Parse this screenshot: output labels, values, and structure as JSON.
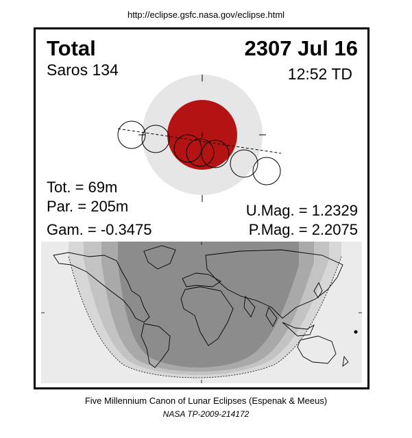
{
  "header": {
    "url": "http://eclipse.gsfc.nasa.gov/eclipse.html"
  },
  "eclipse": {
    "type": "Total",
    "date": "2307 Jul 16",
    "saros": "Saros 134",
    "time": "12:52 TD",
    "tot": "Tot. =  69m",
    "par": "Par. = 205m",
    "gam": "Gam. = -0.3475",
    "umag": "U.Mag. = 1.2329",
    "pmag": "P.Mag. = 2.2075"
  },
  "colors": {
    "umbra": "#b31313",
    "penumbra": "#e6e6e6",
    "map_dark": "#8c8c8c",
    "band_1": "#a9a9a9",
    "band_2": "#c3c3c3",
    "band_3": "#d7d7d7",
    "band_4": "#ebebeb"
  },
  "footer": {
    "line1": "Five Millennium Canon of Lunar Eclipses (Espenak & Meeus)",
    "line2": "NASA TP-2009-214172"
  }
}
